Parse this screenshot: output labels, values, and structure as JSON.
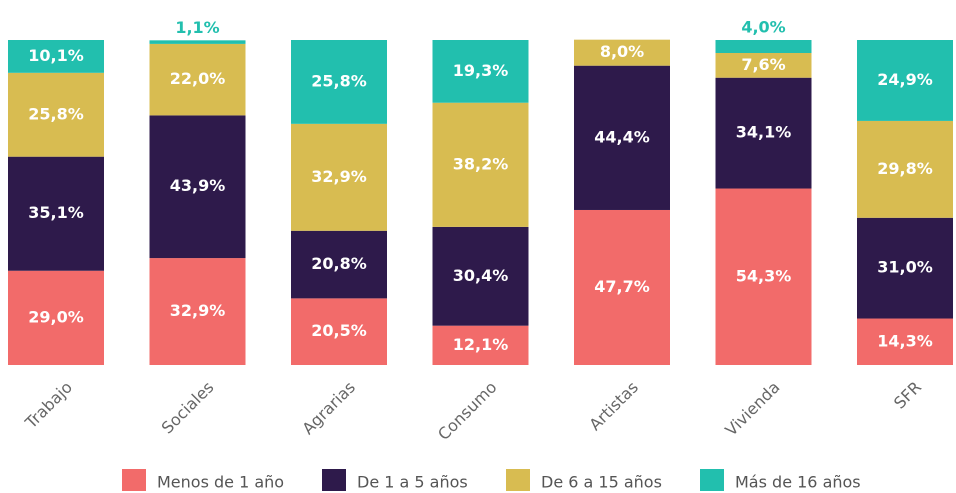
{
  "chart_data": {
    "type": "stacked-bar",
    "categories": [
      "Trabajo",
      "Sociales",
      "Agrarias",
      "Consumo",
      "Artistas",
      "Vivienda",
      "SFR"
    ],
    "ylim": [
      0,
      100
    ],
    "series": [
      {
        "name": "Menos de 1 año",
        "color": "#f26b6a",
        "values": [
          29.0,
          32.9,
          20.5,
          12.1,
          47.7,
          54.3,
          14.3
        ],
        "value_labels": [
          "29,0%",
          "32,9%",
          "20,5%",
          "12,1%",
          "47,7%",
          "54,3%",
          "14,3%"
        ]
      },
      {
        "name": "De 1 a 5 años",
        "color": "#2e1a4b",
        "values": [
          35.1,
          43.9,
          20.8,
          30.4,
          44.4,
          34.1,
          31.0
        ],
        "value_labels": [
          "35,1%",
          "43,9%",
          "20,8%",
          "30,4%",
          "44,4%",
          "34,1%",
          "31,0%"
        ]
      },
      {
        "name": "De 6 a 15 años",
        "color": "#d8bc51",
        "values": [
          25.8,
          22.0,
          32.9,
          38.2,
          8.0,
          7.6,
          29.8
        ],
        "value_labels": [
          "25,8%",
          "22,0%",
          "32,9%",
          "38,2%",
          "8,0%",
          "7,6%",
          "29,8%"
        ]
      },
      {
        "name": "Más de 16 años",
        "color": "#22bfae",
        "values": [
          10.1,
          1.1,
          25.8,
          19.3,
          null,
          4.0,
          24.9
        ],
        "value_labels": [
          "10,1%",
          "1,1%",
          "25,8%",
          "19,3%",
          null,
          "4,0%",
          "24,9%"
        ]
      }
    ]
  }
}
